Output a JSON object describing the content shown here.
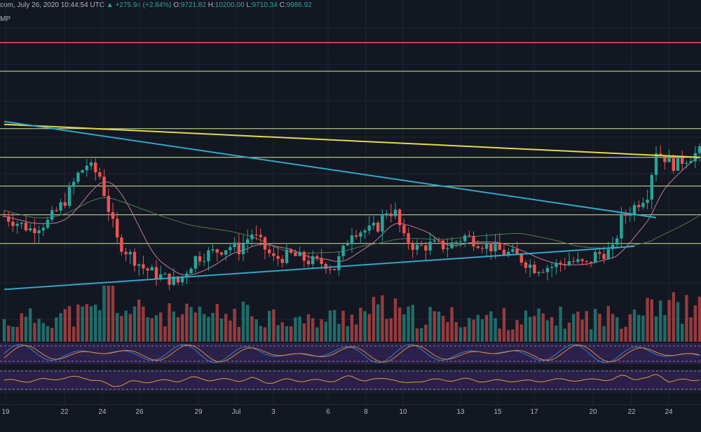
{
  "header": {
    "source_date": "com, July 26, 2020 10:44:54 UTC",
    "change": "+275.94 (+2.84%)",
    "open_label": "O:",
    "open": "9721.82",
    "high_label": "H:",
    "high": "10200.00",
    "low_label": "L:",
    "low": "9710.34",
    "close_label": "C:",
    "close": "9986.92",
    "indicator_label": "MP"
  },
  "colors": {
    "background": "#131722",
    "up": "#26a69a",
    "down": "#ef5350",
    "resistance_red": "#ef5350",
    "level_lines": "#d4e89a",
    "yellow_trend": "#e6d94a",
    "blue_trend": "#2fa8c9",
    "ma_pink": "#c27a9b",
    "ma_green": "#4f7d4a",
    "rsi_band": "#4a2c7a",
    "stoch_k": "#2f7fd8",
    "stoch_d": "#e08a2e",
    "rsi_line": "#e09a3a"
  },
  "chart_data": {
    "type": "candlestick",
    "x_tick_labels": [
      "19",
      "22",
      "24",
      "26",
      "29",
      "Jul",
      "3",
      "6",
      "8",
      "10",
      "13",
      "15",
      "17",
      "20",
      "22",
      "24"
    ],
    "horizontal_levels": [
      10550,
      10150,
      9950,
      9750,
      9550,
      9350
    ],
    "red_resistance_level": 10750,
    "yellow_trendline": [
      [
        0,
        10180
      ],
      [
        160,
        9950
      ]
    ],
    "descending_blue_trendline": [
      [
        0,
        10200
      ],
      [
        150,
        9530
      ]
    ],
    "ascending_blue_trendline": [
      [
        0,
        9030
      ],
      [
        145,
        9330
      ]
    ],
    "ohlc_anchor": {
      "open": 9721.82,
      "high": 10200.0,
      "low": 9710.34,
      "close": 9986.92
    },
    "close_path": [
      [
        0,
        9540
      ],
      [
        6,
        9450
      ],
      [
        10,
        9500
      ],
      [
        14,
        9650
      ],
      [
        17,
        9830
      ],
      [
        19,
        9900
      ],
      [
        22,
        9820
      ],
      [
        24,
        9590
      ],
      [
        26,
        9370
      ],
      [
        28,
        9300
      ],
      [
        32,
        9180
      ],
      [
        36,
        9120
      ],
      [
        40,
        9080
      ],
      [
        44,
        9250
      ],
      [
        48,
        9290
      ],
      [
        52,
        9330
      ],
      [
        54,
        9310
      ],
      [
        57,
        9420
      ],
      [
        59,
        9350
      ],
      [
        62,
        9240
      ],
      [
        66,
        9270
      ],
      [
        70,
        9230
      ],
      [
        74,
        9210
      ],
      [
        76,
        9180
      ],
      [
        78,
        9300
      ],
      [
        80,
        9440
      ],
      [
        84,
        9440
      ],
      [
        86,
        9470
      ],
      [
        88,
        9580
      ],
      [
        90,
        9560
      ],
      [
        92,
        9380
      ],
      [
        95,
        9320
      ],
      [
        98,
        9340
      ],
      [
        102,
        9330
      ],
      [
        106,
        9400
      ],
      [
        110,
        9350
      ],
      [
        114,
        9300
      ],
      [
        118,
        9260
      ],
      [
        122,
        9180
      ],
      [
        126,
        9190
      ],
      [
        130,
        9230
      ],
      [
        134,
        9200
      ],
      [
        136,
        9270
      ],
      [
        140,
        9300
      ],
      [
        142,
        9520
      ],
      [
        144,
        9580
      ],
      [
        146,
        9640
      ],
      [
        148,
        9700
      ],
      [
        150,
        10000
      ],
      [
        154,
        9900
      ],
      [
        158,
        9960
      ],
      [
        160,
        9987
      ]
    ],
    "volume_path": [
      [
        0,
        0.35
      ],
      [
        10,
        0.45
      ],
      [
        20,
        0.5
      ],
      [
        24,
        0.9
      ],
      [
        28,
        0.55
      ],
      [
        40,
        0.45
      ],
      [
        60,
        0.5
      ],
      [
        70,
        0.35
      ],
      [
        88,
        0.6
      ],
      [
        92,
        0.45
      ],
      [
        120,
        0.4
      ],
      [
        142,
        0.45
      ],
      [
        148,
        0.8
      ],
      [
        155,
        0.6
      ],
      [
        160,
        0.55
      ]
    ],
    "volume_scale": "0-1",
    "stoch_rsi_range": [
      0,
      100
    ],
    "rsi_range": [
      0,
      100
    ]
  }
}
